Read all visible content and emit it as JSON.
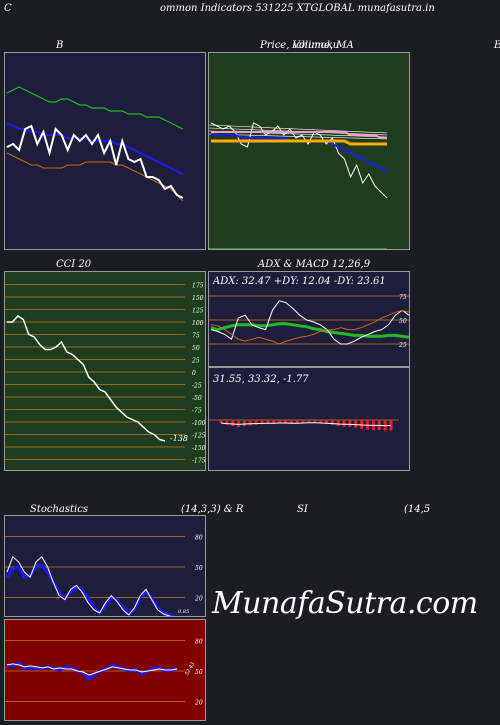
{
  "page": {
    "header_left": "C",
    "header_center": "ommon  Indicators 531225 XTGLOBAL  munafasutra.in",
    "header_right": "E",
    "watermark": "MunafaSutra.com"
  },
  "titles": {
    "bb": "B",
    "price": "Price,  Volume,  MA",
    "price_overlap": "Ichimoku",
    "cci": "CCI 20",
    "adx": "ADX  & MACD 12,26,9",
    "stoch": "Stochastics",
    "stoch_params": "(14,3,3) & R",
    "rsi": "SI",
    "rsi_params": "(14,5"
  },
  "colors": {
    "navy": "#1e1e3c",
    "green_bg": "#1e3c1e",
    "maroon": "#800000",
    "line_white": "#ffffff",
    "line_blue": "#1a1aff",
    "line_green": "#22bb22",
    "line_orange": "#cc6611",
    "grid_orange": "#c87814"
  },
  "chart_data": [
    {
      "type": "line",
      "panel": "bollinger",
      "series": [
        {
          "color": "#22bb22",
          "values": [
            90,
            91,
            92,
            91,
            90,
            89,
            88,
            87,
            87,
            88,
            88,
            87,
            86,
            86,
            85,
            85,
            85,
            84,
            84,
            84,
            83,
            83,
            83,
            82,
            82,
            82,
            81,
            80,
            79,
            78
          ]
        },
        {
          "color": "#1a1aff",
          "values": [
            80,
            79,
            78,
            78,
            77,
            77,
            76,
            76,
            76,
            76,
            75,
            75,
            75,
            75,
            74,
            74,
            74,
            74,
            73,
            73,
            72,
            71,
            70,
            69,
            68,
            67,
            66,
            65,
            64,
            63
          ]
        },
        {
          "color": "#cc6611",
          "values": [
            70,
            69,
            68,
            67,
            66,
            66,
            65,
            65,
            65,
            65,
            66,
            66,
            66,
            67,
            67,
            67,
            67,
            67,
            66,
            66,
            65,
            64,
            63,
            62,
            61,
            60,
            59,
            58,
            56,
            54
          ]
        },
        {
          "color": "#ffffff",
          "values": [
            72,
            73,
            71,
            78,
            79,
            73,
            77,
            70,
            78,
            76,
            71,
            76,
            74,
            76,
            73,
            76,
            70,
            74,
            66,
            74,
            68,
            67,
            68,
            62,
            62,
            61,
            58,
            59,
            56,
            55
          ]
        }
      ]
    },
    {
      "type": "line",
      "panel": "price_ma",
      "series": [
        {
          "color": "#ffffff",
          "values": [
            80,
            79,
            78,
            79,
            77,
            73,
            72,
            80,
            79,
            76,
            77,
            79,
            76,
            78,
            75,
            76,
            73,
            77,
            76,
            73,
            75,
            70,
            68,
            62,
            66,
            60,
            63,
            59,
            57,
            55
          ]
        },
        {
          "color": "#1a1aff",
          "values": [
            76,
            76,
            76,
            76,
            76,
            75,
            75,
            75,
            75,
            75,
            75,
            75,
            75,
            74,
            74,
            74,
            74,
            74,
            74,
            74,
            73,
            72,
            71,
            70,
            69,
            68,
            67,
            66,
            65,
            64
          ]
        },
        {
          "color": "#ff99cc",
          "values": [
            77,
            77,
            77,
            77,
            77,
            77,
            77,
            77,
            77,
            77,
            77,
            77,
            77,
            77,
            77,
            77,
            77,
            77,
            77,
            77,
            77,
            77,
            77,
            76,
            76,
            76,
            76,
            76,
            75,
            75
          ]
        },
        {
          "color": "#ffaa00",
          "values": [
            74,
            74,
            74,
            74,
            74,
            74,
            74,
            74,
            74,
            74,
            74,
            74,
            74,
            74,
            74,
            74,
            74,
            74,
            74,
            74,
            74,
            74,
            74,
            73,
            73,
            73,
            73,
            73,
            73,
            73
          ]
        }
      ]
    },
    {
      "type": "line",
      "panel": "cci",
      "yticks": [
        175,
        150,
        125,
        100,
        75,
        50,
        25,
        0,
        -25,
        -50,
        -75,
        -100,
        -125,
        -150,
        -175
      ],
      "series": [
        {
          "color": "#ffffff",
          "values": [
            100,
            100,
            112,
            105,
            75,
            70,
            55,
            45,
            45,
            50,
            60,
            40,
            35,
            25,
            15,
            -10,
            -20,
            -35,
            -40,
            -55,
            -70,
            -80,
            -90,
            -95,
            -100,
            -110,
            -120,
            -125,
            -135,
            -138
          ]
        }
      ],
      "last_label": "-138"
    },
    {
      "type": "line",
      "panel": "adx",
      "readout": "ADX: 32.47  +DY: 12.04  -DY: 23.61",
      "yticks": [
        75,
        50,
        25
      ],
      "series": [
        {
          "color": "#22bb22",
          "values": [
            42,
            40,
            42,
            44,
            45,
            45,
            45,
            44,
            44,
            45,
            46,
            46,
            45,
            44,
            43,
            41,
            40,
            38,
            37,
            36,
            35,
            34,
            34,
            33,
            33,
            33,
            34,
            34,
            33,
            32
          ]
        },
        {
          "color": "#ffffff",
          "values": [
            40,
            38,
            35,
            30,
            52,
            55,
            45,
            42,
            40,
            60,
            70,
            68,
            62,
            55,
            50,
            48,
            45,
            40,
            30,
            25,
            25,
            28,
            32,
            35,
            38,
            40,
            45,
            55,
            60,
            55
          ]
        },
        {
          "color": "#cc6611",
          "values": [
            45,
            44,
            40,
            35,
            30,
            28,
            30,
            32,
            30,
            28,
            25,
            28,
            30,
            32,
            33,
            35,
            38,
            40,
            40,
            42,
            40,
            40,
            42,
            45,
            48,
            52,
            55,
            58,
            60,
            58
          ]
        }
      ]
    },
    {
      "type": "bar",
      "panel": "macd",
      "readout": "31.55,  33.32,  -1.77",
      "values": [
        -0.5,
        -0.8,
        -1.0,
        -1.2,
        -1.0,
        -0.9,
        -0.8,
        -0.7,
        -0.6,
        -0.6,
        -0.5,
        -0.5,
        -0.6,
        -0.6,
        -0.5,
        -0.4,
        -0.4,
        -0.5,
        -0.6,
        -0.8,
        -1.0,
        -1.1,
        -1.2,
        -1.3,
        -1.5,
        -1.6,
        -1.7,
        -1.7,
        -1.8,
        -1.77
      ]
    },
    {
      "type": "line",
      "panel": "stochastics",
      "yticks": [
        80,
        50,
        20
      ],
      "last_label": "0.85",
      "series": [
        {
          "color": "#1a1aff",
          "values": [
            40,
            48,
            50,
            40,
            42,
            50,
            52,
            45,
            35,
            25,
            20,
            25,
            30,
            28,
            20,
            10,
            5,
            12,
            20,
            18,
            10,
            5,
            8,
            20,
            25,
            20,
            10,
            5,
            3,
            1
          ]
        },
        {
          "color": "#ffffff",
          "values": [
            45,
            60,
            55,
            45,
            40,
            55,
            60,
            50,
            35,
            22,
            18,
            28,
            32,
            25,
            15,
            8,
            5,
            15,
            22,
            16,
            8,
            3,
            10,
            22,
            28,
            18,
            8,
            4,
            2,
            1
          ]
        }
      ]
    },
    {
      "type": "line",
      "panel": "rsi",
      "yticks": [
        80,
        50,
        20
      ],
      "last_label": "52.43",
      "series": [
        {
          "color": "#1a1aff",
          "values": [
            55,
            55,
            58,
            52,
            54,
            52,
            53,
            54,
            52,
            51,
            54,
            53,
            50,
            48,
            42,
            47,
            50,
            52,
            56,
            53,
            52,
            50,
            52,
            47,
            50,
            52,
            53,
            50,
            51,
            52
          ]
        },
        {
          "color": "#ffffff",
          "values": [
            56,
            57,
            56,
            54,
            55,
            54,
            53,
            54,
            52,
            53,
            52,
            52,
            50,
            49,
            46,
            48,
            50,
            52,
            54,
            53,
            52,
            51,
            51,
            49,
            50,
            51,
            52,
            51,
            51,
            52
          ]
        }
      ]
    }
  ]
}
